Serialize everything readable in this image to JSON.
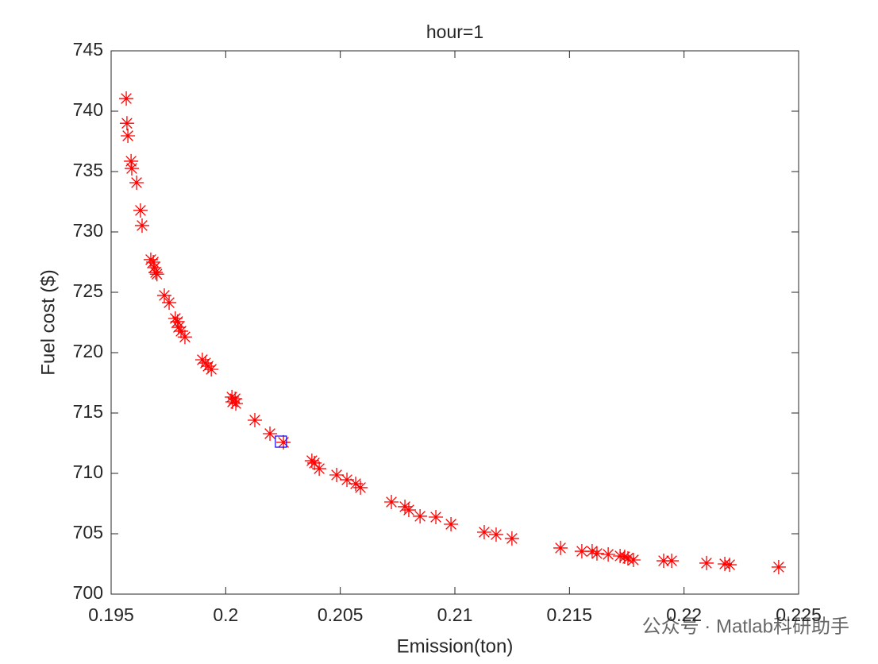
{
  "chart_data": {
    "type": "scatter",
    "title": "hour=1",
    "x_label": "Emission(ton)",
    "y_label": "Fuel cost ($)",
    "x": [
      0.19566,
      0.19569,
      0.19573,
      0.19587,
      0.1959,
      0.19611,
      0.19628,
      0.19635,
      0.19673,
      0.19684,
      0.19688,
      0.19694,
      0.197,
      0.19732,
      0.19753,
      0.1978,
      0.1979,
      0.19794,
      0.19805,
      0.19822,
      0.19898,
      0.19912,
      0.19923,
      0.19937,
      0.20027,
      0.20041,
      0.2003,
      0.20044,
      0.20127,
      0.20193,
      0.20252,
      0.20376,
      0.20387,
      0.20408,
      0.20484,
      0.20529,
      0.20567,
      0.20588,
      0.20723,
      0.20782,
      0.20799,
      0.20848,
      0.20917,
      0.20983,
      0.21128,
      0.2118,
      0.21249,
      0.21461,
      0.21554,
      0.21599,
      0.2162,
      0.21669,
      0.21721,
      0.21741,
      0.21755,
      0.21779,
      0.21911,
      0.21946,
      0.22098,
      0.22178,
      0.22199,
      0.22413
    ],
    "values": [
      741.05,
      739.0,
      737.96,
      735.86,
      735.26,
      734.08,
      731.78,
      730.53,
      727.7,
      727.5,
      727.04,
      726.64,
      726.5,
      724.74,
      724.14,
      722.83,
      722.57,
      722.1,
      721.78,
      721.3,
      719.41,
      719.14,
      718.88,
      718.62,
      716.32,
      716.18,
      715.92,
      715.79,
      714.41,
      713.29,
      712.57,
      711.05,
      710.86,
      710.39,
      709.87,
      709.47,
      709.14,
      708.82,
      707.63,
      707.24,
      706.97,
      706.45,
      706.38,
      705.79,
      705.13,
      704.93,
      704.61,
      703.82,
      703.55,
      703.55,
      703.36,
      703.29,
      703.16,
      703.09,
      702.96,
      702.83,
      702.76,
      702.76,
      702.57,
      702.5,
      702.43,
      702.24
    ],
    "color": "#ff0000",
    "highlight_x": 0.20241,
    "highlight_y": 712.63,
    "highlight_color": "#0000ff",
    "xlim": [
      0.195,
      0.225
    ],
    "xticks": [
      0.195,
      0.2,
      0.205,
      0.21,
      0.215,
      0.22,
      0.225
    ],
    "ylim": [
      700,
      745
    ],
    "yticks": [
      700,
      705,
      710,
      715,
      720,
      725,
      730,
      735,
      740,
      745
    ],
    "watermark": "公众号 · Matlab科研助手"
  }
}
